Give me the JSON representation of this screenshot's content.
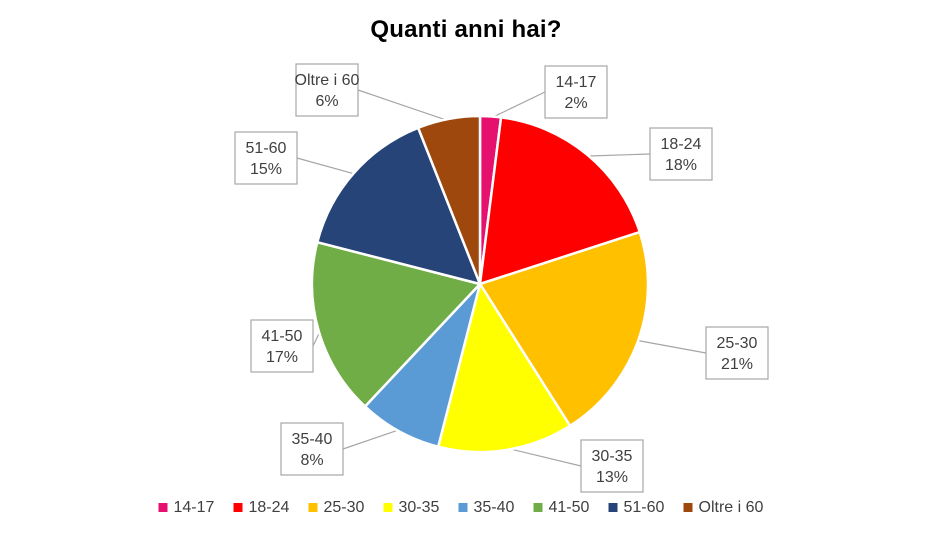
{
  "chart_data": {
    "type": "pie",
    "title": "Quanti anni hai?",
    "legend_position": "bottom",
    "slices": [
      {
        "label": "14-17",
        "value": 2,
        "value_label": "2%",
        "color": "#E6106E"
      },
      {
        "label": "18-24",
        "value": 18,
        "value_label": "18%",
        "color": "#FF0000"
      },
      {
        "label": "25-30",
        "value": 21,
        "value_label": "21%",
        "color": "#FFC000"
      },
      {
        "label": "30-35",
        "value": 13,
        "value_label": "13%",
        "color": "#FFFF00"
      },
      {
        "label": "35-40",
        "value": 8,
        "value_label": "8%",
        "color": "#5B9BD5"
      },
      {
        "label": "41-50",
        "value": 17,
        "value_label": "17%",
        "color": "#70AD47"
      },
      {
        "label": "51-60",
        "value": 15,
        "value_label": "15%",
        "color": "#264478"
      },
      {
        "label": "Oltre i 60",
        "value": 6,
        "value_label": "6%",
        "color": "#9E480E"
      }
    ]
  }
}
